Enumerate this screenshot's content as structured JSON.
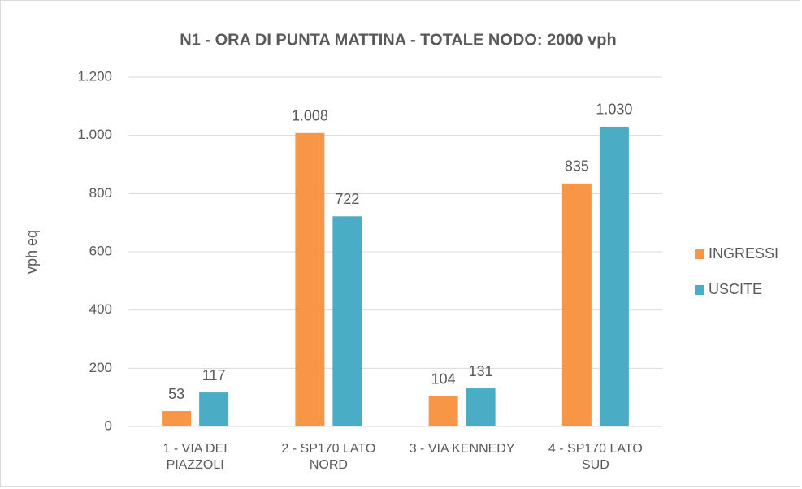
{
  "chart_data": {
    "type": "bar",
    "title": "N1 - ORA DI PUNTA MATTINA - TOTALE NODO: 2000 vph",
    "y_label": "vph eq",
    "categories": [
      "1 - VIA DEI PIAZZOLI",
      "2 - SP170 LATO NORD",
      "3 - VIA KENNEDY",
      "4 - SP170 LATO SUD"
    ],
    "series": [
      {
        "name": "INGRESSI",
        "color": "#f79646",
        "values": [
          53,
          1008,
          104,
          835
        ],
        "value_labels": [
          "53",
          "1.008",
          "104",
          "835"
        ]
      },
      {
        "name": "USCITE",
        "color": "#4bacc6",
        "values": [
          117,
          722,
          131,
          1030
        ],
        "value_labels": [
          "117",
          "722",
          "131",
          "1.030"
        ]
      }
    ],
    "ylim": [
      0,
      1200
    ],
    "yticks": [
      0,
      200,
      400,
      600,
      800,
      {
        "value": 1000,
        "label": "1.000"
      },
      {
        "value": 1200,
        "label": "1.200"
      }
    ],
    "grid": true,
    "legend": "right"
  }
}
